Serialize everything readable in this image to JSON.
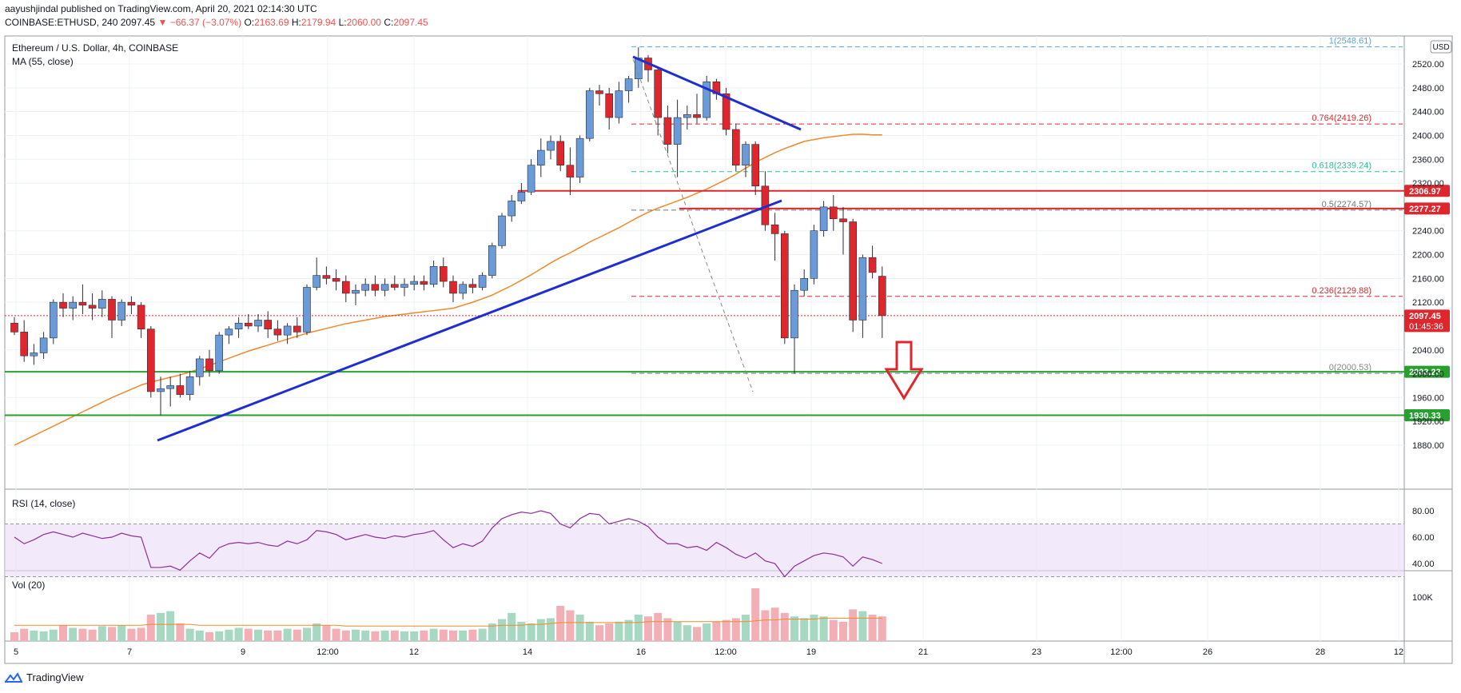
{
  "header": {
    "line1": "aayushjindal published on TradingView.com, April 20, 2021 02:14:30 UTC",
    "symbol": "COINBASE:ETHUSD, 240",
    "last": "2097.45",
    "change": "−66.37 (−3.07%)",
    "o_label": "O:",
    "o": "2163.69",
    "h_label": "H:",
    "h": "2179.94",
    "l_label": "L:",
    "l": "2060.00",
    "c_label": "C:",
    "c": "2097.45"
  },
  "legend": {
    "title": "Ethereum / U.S. Dollar, 4h, COINBASE",
    "ma": "MA (55, close)",
    "rsi": "RSI (14, close)",
    "vol": "Vol (20)",
    "currency": "USD"
  },
  "footer": {
    "brand": "TradingView"
  },
  "colors": {
    "up": "#6a9bd8",
    "down": "#e0262d",
    "ma": "#f0892a",
    "trend": "#1e2ed1",
    "support": "#27a12e",
    "resistance": "#e0262d",
    "rsi": "#8e2c9c",
    "rsi_band": "#e9dcf7",
    "vol_up": "#a7d9c2",
    "vol_down": "#f2b0b6"
  },
  "chart_data": {
    "type": "candlestick",
    "y_ticks": [
      "2520.00",
      "2480.00",
      "2440.00",
      "2400.00",
      "2360.00",
      "2320.00",
      "2240.00",
      "2200.00",
      "2160.00",
      "2120.00",
      "2040.00",
      "2000.00",
      "1960.00",
      "1920.00",
      "1880.00"
    ],
    "x_ticks": [
      "5",
      "7",
      "9",
      "12:00",
      "12",
      "14",
      "16",
      "12:00",
      "19",
      "21",
      "23",
      "12:00",
      "26",
      "28",
      "12"
    ],
    "ylim": [
      1850,
      2560
    ],
    "fibonacci": [
      {
        "label": "1(2548.61)",
        "value": 2548.61,
        "color": "#5aa5d9"
      },
      {
        "label": "0.764(2419.26)",
        "value": 2419.26,
        "color": "#e0262d"
      },
      {
        "label": "0.618(2339.24)",
        "value": 2339.24,
        "color": "#2dbf9b"
      },
      {
        "label": "0.5(2274.57)",
        "value": 2274.57,
        "color": "#777777"
      },
      {
        "label": "0.236(2129.88)",
        "value": 2129.88,
        "color": "#e0262d"
      },
      {
        "label": "0(2000.53)",
        "value": 2000.53,
        "color": "#888888"
      }
    ],
    "price_tags": [
      {
        "label": "2306.97",
        "value": 2306.97,
        "color": "#e0262d"
      },
      {
        "label": "2277.27",
        "value": 2277.27,
        "color": "#e0262d"
      },
      {
        "label": "2097.45",
        "value": 2097.45,
        "color": "#e0262d",
        "sub": "01:45:36"
      },
      {
        "label": "2003.23",
        "value": 2003.23,
        "color": "#27a12e"
      },
      {
        "label": "1930.33",
        "value": 1930.33,
        "color": "#27a12e"
      }
    ],
    "rsi_ticks": [
      "80.00",
      "60.00",
      "40.00"
    ],
    "vol_ticks": [
      "100K"
    ],
    "candles": [
      [
        2085,
        2095,
        2065,
        2070
      ],
      [
        2070,
        2090,
        2020,
        2030
      ],
      [
        2030,
        2050,
        2015,
        2035
      ],
      [
        2035,
        2070,
        2025,
        2060
      ],
      [
        2060,
        2125,
        2050,
        2120
      ],
      [
        2120,
        2135,
        2095,
        2110
      ],
      [
        2110,
        2130,
        2090,
        2120
      ],
      [
        2120,
        2150,
        2100,
        2115
      ],
      [
        2115,
        2135,
        2090,
        2110
      ],
      [
        2110,
        2140,
        2095,
        2125
      ],
      [
        2125,
        2130,
        2060,
        2090
      ],
      [
        2090,
        2125,
        2080,
        2120
      ],
      [
        2120,
        2130,
        2100,
        2115
      ],
      [
        2115,
        2120,
        2060,
        2075
      ],
      [
        2075,
        2080,
        1960,
        1970
      ],
      [
        1970,
        1995,
        1930,
        1975
      ],
      [
        1975,
        1995,
        1945,
        1980
      ],
      [
        1980,
        2000,
        1960,
        1965
      ],
      [
        1965,
        2005,
        1955,
        1995
      ],
      [
        1995,
        2030,
        1980,
        2025
      ],
      [
        2025,
        2040,
        1995,
        2005
      ],
      [
        2005,
        2070,
        2000,
        2065
      ],
      [
        2065,
        2080,
        2050,
        2075
      ],
      [
        2075,
        2095,
        2060,
        2085
      ],
      [
        2085,
        2100,
        2075,
        2080
      ],
      [
        2080,
        2100,
        2070,
        2090
      ],
      [
        2090,
        2105,
        2060,
        2075
      ],
      [
        2075,
        2090,
        2055,
        2065
      ],
      [
        2065,
        2085,
        2050,
        2080
      ],
      [
        2080,
        2095,
        2060,
        2070
      ],
      [
        2070,
        2150,
        2065,
        2145
      ],
      [
        2145,
        2195,
        2140,
        2165
      ],
      [
        2165,
        2180,
        2150,
        2160
      ],
      [
        2160,
        2175,
        2140,
        2155
      ],
      [
        2155,
        2165,
        2120,
        2135
      ],
      [
        2135,
        2150,
        2115,
        2140
      ],
      [
        2140,
        2160,
        2130,
        2150
      ],
      [
        2150,
        2165,
        2130,
        2140
      ],
      [
        2140,
        2160,
        2130,
        2150
      ],
      [
        2150,
        2165,
        2140,
        2145
      ],
      [
        2145,
        2160,
        2130,
        2150
      ],
      [
        2150,
        2165,
        2140,
        2155
      ],
      [
        2155,
        2165,
        2140,
        2150
      ],
      [
        2150,
        2190,
        2145,
        2180
      ],
      [
        2180,
        2195,
        2145,
        2155
      ],
      [
        2155,
        2165,
        2120,
        2135
      ],
      [
        2135,
        2155,
        2125,
        2150
      ],
      [
        2150,
        2160,
        2135,
        2145
      ],
      [
        2145,
        2170,
        2140,
        2165
      ],
      [
        2165,
        2220,
        2160,
        2215
      ],
      [
        2215,
        2270,
        2210,
        2265
      ],
      [
        2265,
        2300,
        2255,
        2290
      ],
      [
        2290,
        2320,
        2285,
        2305
      ],
      [
        2305,
        2360,
        2300,
        2350
      ],
      [
        2350,
        2395,
        2330,
        2375
      ],
      [
        2375,
        2400,
        2360,
        2390
      ],
      [
        2390,
        2400,
        2340,
        2350
      ],
      [
        2350,
        2380,
        2300,
        2330
      ],
      [
        2330,
        2400,
        2320,
        2395
      ],
      [
        2395,
        2480,
        2390,
        2475
      ],
      [
        2475,
        2485,
        2450,
        2470
      ],
      [
        2470,
        2480,
        2410,
        2430
      ],
      [
        2430,
        2490,
        2420,
        2475
      ],
      [
        2475,
        2500,
        2455,
        2495
      ],
      [
        2495,
        2548,
        2480,
        2530
      ],
      [
        2530,
        2535,
        2490,
        2510
      ],
      [
        2510,
        2515,
        2400,
        2430
      ],
      [
        2430,
        2450,
        2370,
        2385
      ],
      [
        2385,
        2460,
        2330,
        2430
      ],
      [
        2430,
        2450,
        2410,
        2435
      ],
      [
        2435,
        2470,
        2420,
        2430
      ],
      [
        2430,
        2500,
        2425,
        2490
      ],
      [
        2490,
        2495,
        2460,
        2470
      ],
      [
        2470,
        2480,
        2400,
        2410
      ],
      [
        2410,
        2420,
        2340,
        2350
      ],
      [
        2350,
        2390,
        2330,
        2385
      ],
      [
        2385,
        2390,
        2300,
        2315
      ],
      [
        2315,
        2340,
        2240,
        2250
      ],
      [
        2250,
        2270,
        2190,
        2235
      ],
      [
        2235,
        2240,
        2050,
        2060
      ],
      [
        2060,
        2150,
        2000,
        2140
      ],
      [
        2140,
        2175,
        2130,
        2160
      ],
      [
        2160,
        2250,
        2150,
        2240
      ],
      [
        2240,
        2290,
        2230,
        2280
      ],
      [
        2280,
        2300,
        2240,
        2260
      ],
      [
        2260,
        2280,
        2200,
        2255
      ],
      [
        2255,
        2260,
        2070,
        2090
      ],
      [
        2090,
        2200,
        2060,
        2195
      ],
      [
        2195,
        2215,
        2160,
        2170
      ],
      [
        2163.69,
        2179.94,
        2060,
        2097.45
      ]
    ],
    "ma55": [
      1880,
      1888,
      1896,
      1904,
      1912,
      1920,
      1928,
      1936,
      1944,
      1952,
      1960,
      1967,
      1974,
      1981,
      1986,
      1990,
      1994,
      1998,
      2003,
      2008,
      2014,
      2020,
      2026,
      2032,
      2038,
      2043,
      2048,
      2053,
      2058,
      2063,
      2068,
      2072,
      2076,
      2080,
      2084,
      2087,
      2090,
      2093,
      2096,
      2098,
      2100,
      2102,
      2104,
      2106,
      2108,
      2110,
      2115,
      2120,
      2126,
      2132,
      2140,
      2148,
      2157,
      2166,
      2176,
      2186,
      2195,
      2203,
      2212,
      2221,
      2229,
      2237,
      2245,
      2254,
      2263,
      2271,
      2278,
      2284,
      2290,
      2296,
      2303,
      2310,
      2318,
      2326,
      2335,
      2345,
      2355,
      2363,
      2371,
      2378,
      2384,
      2390,
      2393,
      2396,
      2398,
      2400,
      2402,
      2402,
      2401,
      2401
    ],
    "rsi": [
      60,
      55,
      58,
      62,
      64,
      62,
      60,
      63,
      61,
      59,
      60,
      63,
      61,
      60,
      37,
      37,
      38,
      35,
      42,
      48,
      44,
      52,
      55,
      56,
      55,
      56,
      54,
      53,
      57,
      55,
      58,
      65,
      64,
      62,
      58,
      60,
      62,
      60,
      59,
      61,
      60,
      62,
      63,
      65,
      58,
      52,
      55,
      53,
      57,
      67,
      74,
      77,
      79,
      78,
      80,
      78,
      70,
      67,
      74,
      78,
      77,
      70,
      72,
      74,
      72,
      68,
      60,
      55,
      55,
      52,
      53,
      50,
      56,
      52,
      47,
      44,
      48,
      42,
      40,
      30,
      38,
      42,
      46,
      48,
      47,
      45,
      38,
      45,
      43,
      40
    ],
    "volume": [
      10,
      14,
      12,
      11,
      13,
      18,
      15,
      14,
      13,
      17,
      16,
      18,
      14,
      15,
      30,
      32,
      34,
      20,
      14,
      12,
      10,
      11,
      13,
      15,
      14,
      13,
      12,
      12,
      14,
      13,
      15,
      20,
      18,
      14,
      12,
      13,
      12,
      11,
      12,
      12,
      11,
      11,
      12,
      14,
      13,
      12,
      12,
      13,
      14,
      20,
      25,
      32,
      22,
      20,
      25,
      26,
      40,
      35,
      30,
      22,
      18,
      20,
      22,
      24,
      30,
      28,
      32,
      26,
      22,
      18,
      16,
      20,
      22,
      24,
      26,
      30,
      60,
      35,
      38,
      32,
      28,
      26,
      30,
      28,
      24,
      22,
      36,
      34,
      30,
      28
    ],
    "volume_ma": [
      18,
      18,
      18,
      18,
      18,
      18,
      18,
      18,
      18,
      18,
      18,
      18,
      18,
      18,
      19,
      19,
      19,
      19,
      19,
      18,
      18,
      18,
      18,
      18,
      18,
      18,
      18,
      18,
      18,
      18,
      18,
      18,
      18,
      18,
      17,
      17,
      17,
      17,
      17,
      17,
      17,
      17,
      17,
      17,
      17,
      17,
      17,
      17,
      17,
      17,
      18,
      18,
      18,
      19,
      19,
      20,
      21,
      21,
      21,
      21,
      21,
      21,
      21,
      21,
      21,
      22,
      22,
      22,
      22,
      22,
      22,
      22,
      22,
      22,
      22,
      22,
      23,
      24,
      24,
      25,
      25,
      25,
      25,
      26,
      26,
      26,
      26,
      26,
      26,
      26
    ]
  }
}
